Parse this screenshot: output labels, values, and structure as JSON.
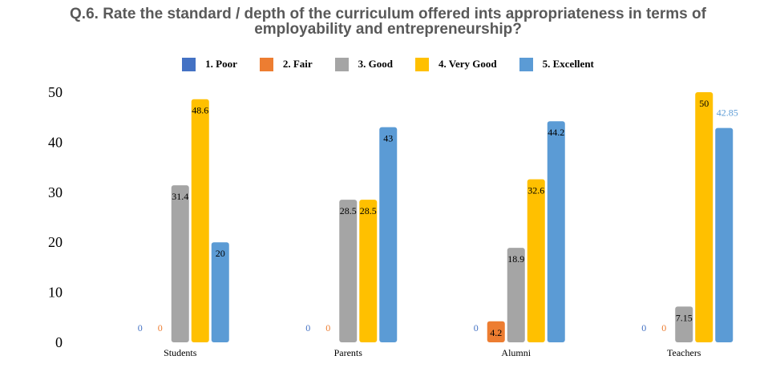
{
  "chart_data": {
    "type": "bar",
    "title": "Q.6. Rate the standard / depth of the curriculum offered ints appropriateness in terms of employability and entrepreneurship?",
    "title_lines": [
      "Q.6. Rate the standard / depth of the curriculum offered ints appropriateness in terms of",
      "employability and entrepreneurship?"
    ],
    "categories": [
      "Students",
      "Parents",
      "Alumni",
      "Teachers"
    ],
    "series": [
      {
        "name": "1.  Poor",
        "color": "#4472C4",
        "values": [
          0,
          0,
          0,
          0
        ],
        "labels": [
          "0",
          "0",
          "0",
          "0"
        ]
      },
      {
        "name": "2.  Fair",
        "color": "#ED7D31",
        "values": [
          0,
          0,
          4.2,
          0
        ],
        "labels": [
          "0",
          "0",
          "4.2",
          "0"
        ]
      },
      {
        "name": "3.  Good",
        "color": "#A5A5A5",
        "values": [
          31.4,
          28.5,
          18.9,
          7.15
        ],
        "labels": [
          "31.4",
          "28.5",
          "18.9",
          "7.15"
        ]
      },
      {
        "name": "4.  Very Good",
        "color": "#FFC000",
        "values": [
          48.6,
          28.5,
          32.6,
          50
        ],
        "labels": [
          "48.6",
          "28.5",
          "32.6",
          "50"
        ]
      },
      {
        "name": "5.  Excellent",
        "color": "#5B9BD5",
        "values": [
          20,
          43,
          44.2,
          42.85
        ],
        "labels": [
          "20",
          "43",
          "44.2",
          "42.85"
        ]
      }
    ],
    "yticks": [
      "0",
      "10",
      "20",
      "30",
      "40",
      "50"
    ],
    "ylim": [
      0,
      50
    ],
    "grid": false,
    "legend_position": "top"
  }
}
